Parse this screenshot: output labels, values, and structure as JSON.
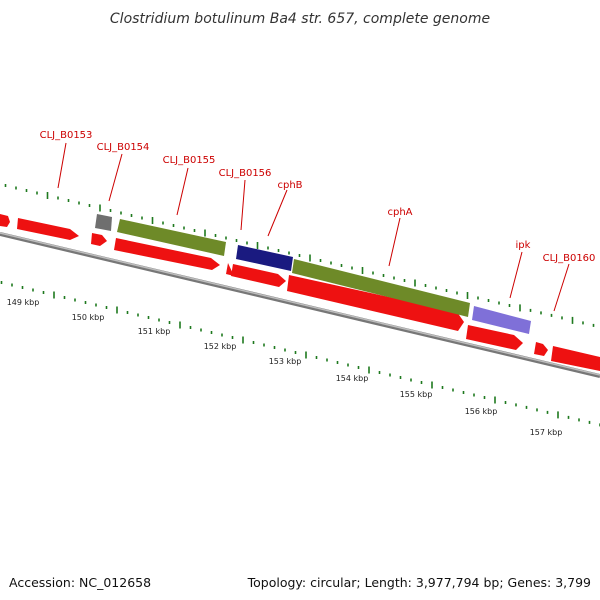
{
  "title": "Clostridium botulinum Ba4 str. 657, complete genome",
  "footer": {
    "accession": "Accession: NC_012658",
    "topology": "Topology: circular; Length: 3,977,794 bp; Genes: 3,799"
  },
  "colors": {
    "gene_label": "#cc0000",
    "cds_red": "#ee1111",
    "olive": "#6e8a28",
    "navy": "#1a1a80",
    "lavender": "#7f70d8",
    "gray": "#6f6f6f",
    "backbone": "#999999",
    "tick_green": "#1f7a1f"
  },
  "gene_labels": [
    "CLJ_B0153",
    "CLJ_B0154",
    "CLJ_B0155",
    "CLJ_B0156",
    "cphB",
    "cphA",
    "ipk",
    "CLJ_B0160"
  ],
  "kbp_labels": [
    "149 kbp",
    "150 kbp",
    "151 kbp",
    "152 kbp",
    "153 kbp",
    "154 kbp",
    "155 kbp",
    "156 kbp",
    "157 kbp"
  ]
}
